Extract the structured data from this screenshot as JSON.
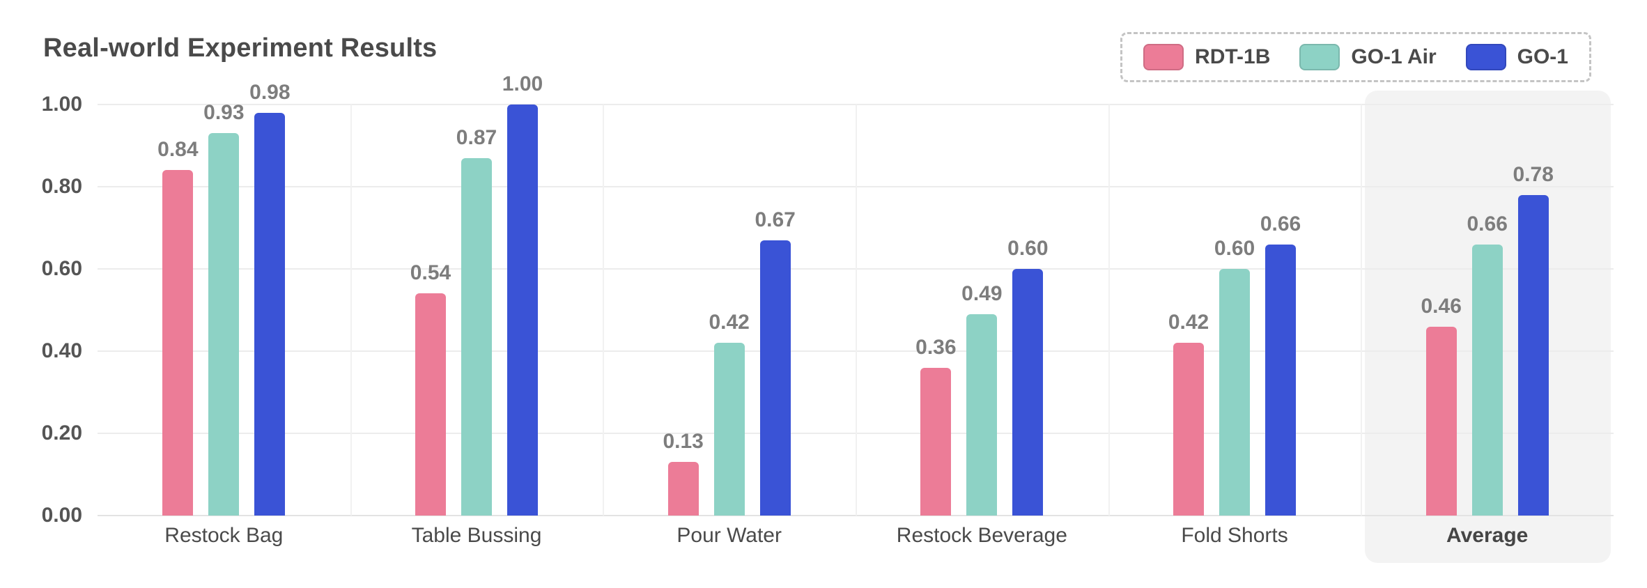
{
  "title": "Real-world Experiment Results",
  "legend": {
    "items": [
      {
        "label": "RDT-1B",
        "color": "#EC7C97"
      },
      {
        "label": "GO-1 Air",
        "color": "#8DD2C5"
      },
      {
        "label": "GO-1",
        "color": "#3A53D6"
      }
    ]
  },
  "chart_data": {
    "type": "bar",
    "title": "Real-world Experiment Results",
    "categories": [
      "Restock Bag",
      "Table Bussing",
      "Pour Water",
      "Restock Beverage",
      "Fold Shorts",
      "Average"
    ],
    "series": [
      {
        "name": "RDT-1B",
        "color": "#EC7C97",
        "values": [
          0.84,
          0.54,
          0.13,
          0.36,
          0.42,
          0.46
        ]
      },
      {
        "name": "GO-1 Air",
        "color": "#8DD2C5",
        "values": [
          0.93,
          0.87,
          0.42,
          0.49,
          0.6,
          0.66
        ]
      },
      {
        "name": "GO-1",
        "color": "#3A53D6",
        "values": [
          0.98,
          1.0,
          0.67,
          0.6,
          0.66,
          0.78
        ]
      }
    ],
    "xlabel": "",
    "ylabel": "",
    "ylim": [
      0,
      1.0
    ],
    "yticks": [
      0.0,
      0.2,
      0.4,
      0.6,
      0.8,
      1.0
    ],
    "value_label_decimals": 2,
    "grid": true,
    "legend_position": "top-right",
    "highlight_category": "Average",
    "highlight_color": "#f3f3f3",
    "value_label_color": "#7d7d7d",
    "axis_text_color": "#555555"
  }
}
